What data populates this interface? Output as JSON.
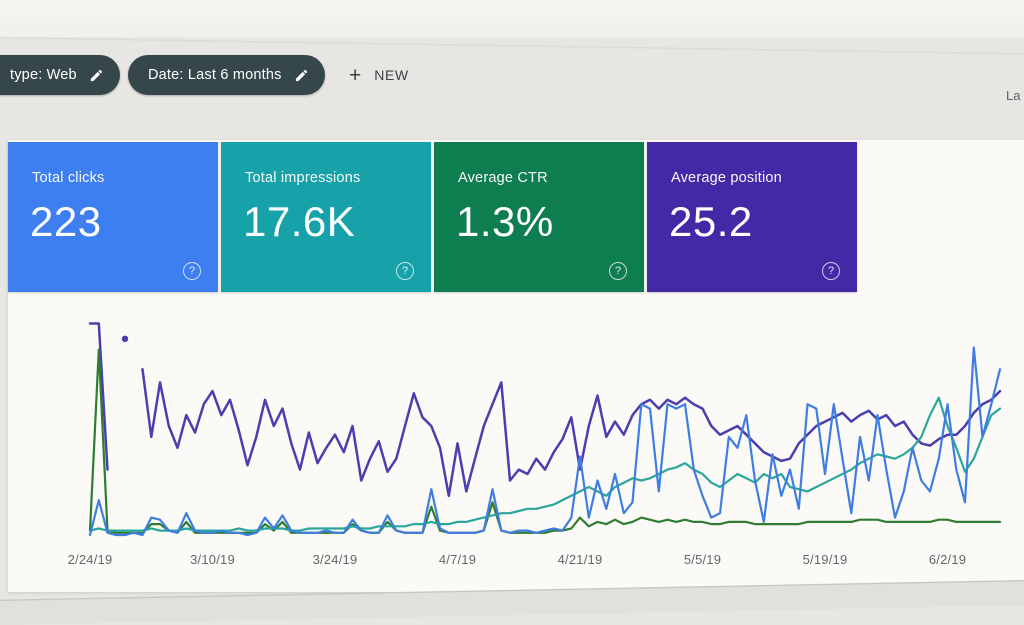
{
  "filters": {
    "chip_type": "type: Web",
    "chip_date": "Date: Last 6 months",
    "new_button": "NEW",
    "top_right_truncated": "La",
    "chip_bg": "#36474b"
  },
  "cards": [
    {
      "label": "Total clicks",
      "value": "223",
      "color": "#3d7ef0"
    },
    {
      "label": "Total impressions",
      "value": "17.6K",
      "color": "#17a1a9"
    },
    {
      "label": "Average CTR",
      "value": "1.3%",
      "color": "#0e7d4f"
    },
    {
      "label": "Average position",
      "value": "25.2",
      "color": "#4329a6"
    }
  ],
  "help_icon_glyph": "?",
  "chart_data": {
    "type": "line",
    "title": "",
    "xlabel": "",
    "ylabel": "",
    "grid": false,
    "legend": "none (colors match metric cards)",
    "n_points": 105,
    "x_unit": "days (daily points, 2/24/19 through 6/8/19)",
    "x_tick_indices": [
      0,
      14,
      28,
      42,
      56,
      70,
      84,
      98
    ],
    "x_tick_labels": [
      "2/24/19",
      "3/10/19",
      "3/24/19",
      "4/7/19",
      "4/21/19",
      "5/5/19",
      "5/19/19",
      "6/2/19"
    ],
    "unit_note": "No y-axis is shown in the UI; values are estimated as percent of plot height (0 = baseline, 100 = top). null = gap in data (isolated point renders as a dot).",
    "series": [
      {
        "id": "position",
        "name": "Average position",
        "color": "#4b3fae",
        "width": 2.5,
        "values": [
          97,
          97,
          30,
          null,
          90,
          null,
          76,
          45,
          70,
          50,
          40,
          55,
          47,
          60,
          66,
          55,
          62,
          48,
          32,
          45,
          62,
          50,
          58,
          42,
          30,
          47,
          33,
          40,
          46,
          38,
          50,
          25,
          35,
          43,
          29,
          35,
          50,
          65,
          54,
          50,
          40,
          18,
          42,
          20,
          35,
          50,
          60,
          70,
          25,
          30,
          28,
          35,
          30,
          38,
          44,
          54,
          30,
          50,
          64,
          45,
          52,
          46,
          55,
          60,
          62,
          58,
          62,
          60,
          63,
          60,
          58,
          50,
          46,
          48,
          50,
          46,
          42,
          38,
          36,
          34,
          35,
          42,
          46,
          50,
          52,
          54,
          56,
          52,
          55,
          57,
          53,
          55,
          50,
          52,
          46,
          42,
          41,
          44,
          46,
          46,
          50,
          56,
          60,
          62,
          66
        ]
      },
      {
        "id": "ctr",
        "name": "Average CTR",
        "color": "#2e7d32",
        "width": 2.2,
        "values": [
          2,
          85,
          2,
          1,
          1,
          1,
          1,
          5,
          5,
          2,
          1,
          6,
          1,
          1,
          1,
          1,
          1,
          1,
          1,
          1,
          5,
          2,
          6,
          1,
          1,
          1,
          1,
          1,
          1,
          1,
          5,
          2,
          1,
          1,
          6,
          2,
          1,
          1,
          1,
          13,
          2,
          1,
          1,
          1,
          1,
          2,
          15,
          2,
          1,
          1,
          1,
          1,
          1,
          2,
          2,
          3,
          8,
          4,
          6,
          5,
          7,
          5,
          6,
          8,
          7,
          6,
          7,
          6,
          7,
          6,
          6,
          5,
          5,
          6,
          6,
          6,
          5,
          5,
          5,
          5,
          5,
          5,
          6,
          6,
          6,
          6,
          6,
          6,
          7,
          7,
          7,
          6,
          6,
          6,
          6,
          6,
          6,
          7,
          7,
          6,
          6,
          6,
          6,
          6,
          6
        ]
      },
      {
        "id": "impressions",
        "name": "Total impressions",
        "color": "#2aa69c",
        "width": 2.2,
        "values": [
          2,
          3,
          2,
          2,
          2,
          2,
          2,
          3,
          2,
          2,
          2,
          3,
          2,
          2,
          2,
          2,
          2,
          3,
          2,
          2,
          3,
          3,
          3,
          2,
          2,
          3,
          3,
          3,
          3,
          3,
          4,
          3,
          3,
          4,
          4,
          4,
          4,
          5,
          5,
          6,
          5,
          5,
          6,
          6,
          7,
          8,
          9,
          10,
          10,
          11,
          12,
          12,
          13,
          14,
          16,
          18,
          20,
          22,
          20,
          18,
          22,
          24,
          26,
          25,
          26,
          28,
          30,
          31,
          33,
          30,
          28,
          24,
          22,
          25,
          28,
          26,
          24,
          28,
          26,
          28,
          22,
          21,
          20,
          22,
          24,
          26,
          28,
          30,
          33,
          35,
          37,
          36,
          35,
          37,
          40,
          45,
          55,
          63,
          50,
          40,
          29,
          35,
          45,
          55,
          58
        ]
      },
      {
        "id": "clicks",
        "name": "Total clicks",
        "color": "#3f7de0",
        "width": 2.2,
        "values": [
          0,
          16,
          1,
          0,
          0,
          1,
          0,
          8,
          7,
          2,
          1,
          10,
          2,
          1,
          1,
          2,
          1,
          1,
          0,
          1,
          8,
          3,
          9,
          2,
          1,
          1,
          1,
          2,
          1,
          1,
          7,
          2,
          1,
          1,
          9,
          2,
          1,
          1,
          1,
          21,
          3,
          1,
          1,
          1,
          1,
          2,
          21,
          2,
          1,
          2,
          2,
          1,
          2,
          3,
          2,
          8,
          36,
          8,
          25,
          12,
          28,
          10,
          15,
          60,
          58,
          20,
          60,
          58,
          60,
          30,
          18,
          8,
          10,
          45,
          40,
          55,
          25,
          6,
          37,
          18,
          30,
          12,
          60,
          58,
          28,
          60,
          35,
          10,
          45,
          25,
          55,
          30,
          8,
          20,
          40,
          25,
          20,
          35,
          60,
          30,
          15,
          86,
          45,
          60,
          76
        ]
      }
    ]
  }
}
